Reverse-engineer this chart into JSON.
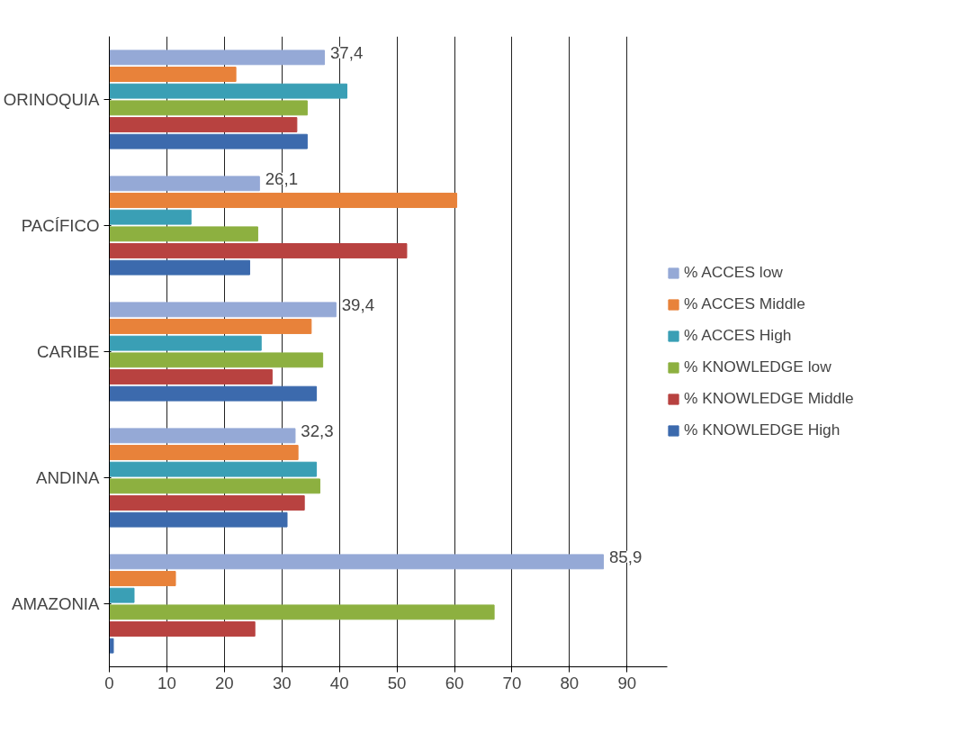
{
  "chart_data": {
    "type": "bar",
    "orientation": "horizontal",
    "categories": [
      "ORINOQUIA",
      "PACÍFICO",
      "CARIBE",
      "ANDINA",
      "AMAZONIA"
    ],
    "series": [
      {
        "name": "% ACCES low",
        "color": "#95a9d6",
        "values": [
          37.4,
          26.1,
          39.4,
          32.3,
          85.9
        ],
        "value_labels": [
          "37,4",
          "26,1",
          "39,4",
          "32,3",
          "85,9"
        ]
      },
      {
        "name": "% ACCES Middle",
        "color": "#e8823a",
        "values": [
          22,
          60.4,
          35.1,
          32.8,
          11.5
        ]
      },
      {
        "name": "% ACCES High",
        "color": "#3a9fb5",
        "values": [
          41.3,
          14.2,
          26.4,
          36,
          4.3
        ]
      },
      {
        "name": "% KNOWLEDGE low",
        "color": "#8db040",
        "values": [
          34.4,
          25.8,
          37.1,
          36.6,
          66.9
        ]
      },
      {
        "name": "% KNOWLEDGE Middle",
        "color": "#b84240",
        "values": [
          32.6,
          51.7,
          28.3,
          33.9,
          25.3
        ]
      },
      {
        "name": "% KNOWLEDGE High",
        "color": "#3c6aad",
        "values": [
          34.4,
          24.4,
          36,
          30.9,
          0.7
        ]
      }
    ],
    "xlim": [
      0,
      97
    ],
    "xticks": [
      0,
      10,
      20,
      30,
      40,
      50,
      60,
      70,
      80,
      90
    ],
    "grid": "x",
    "legend": "right"
  }
}
